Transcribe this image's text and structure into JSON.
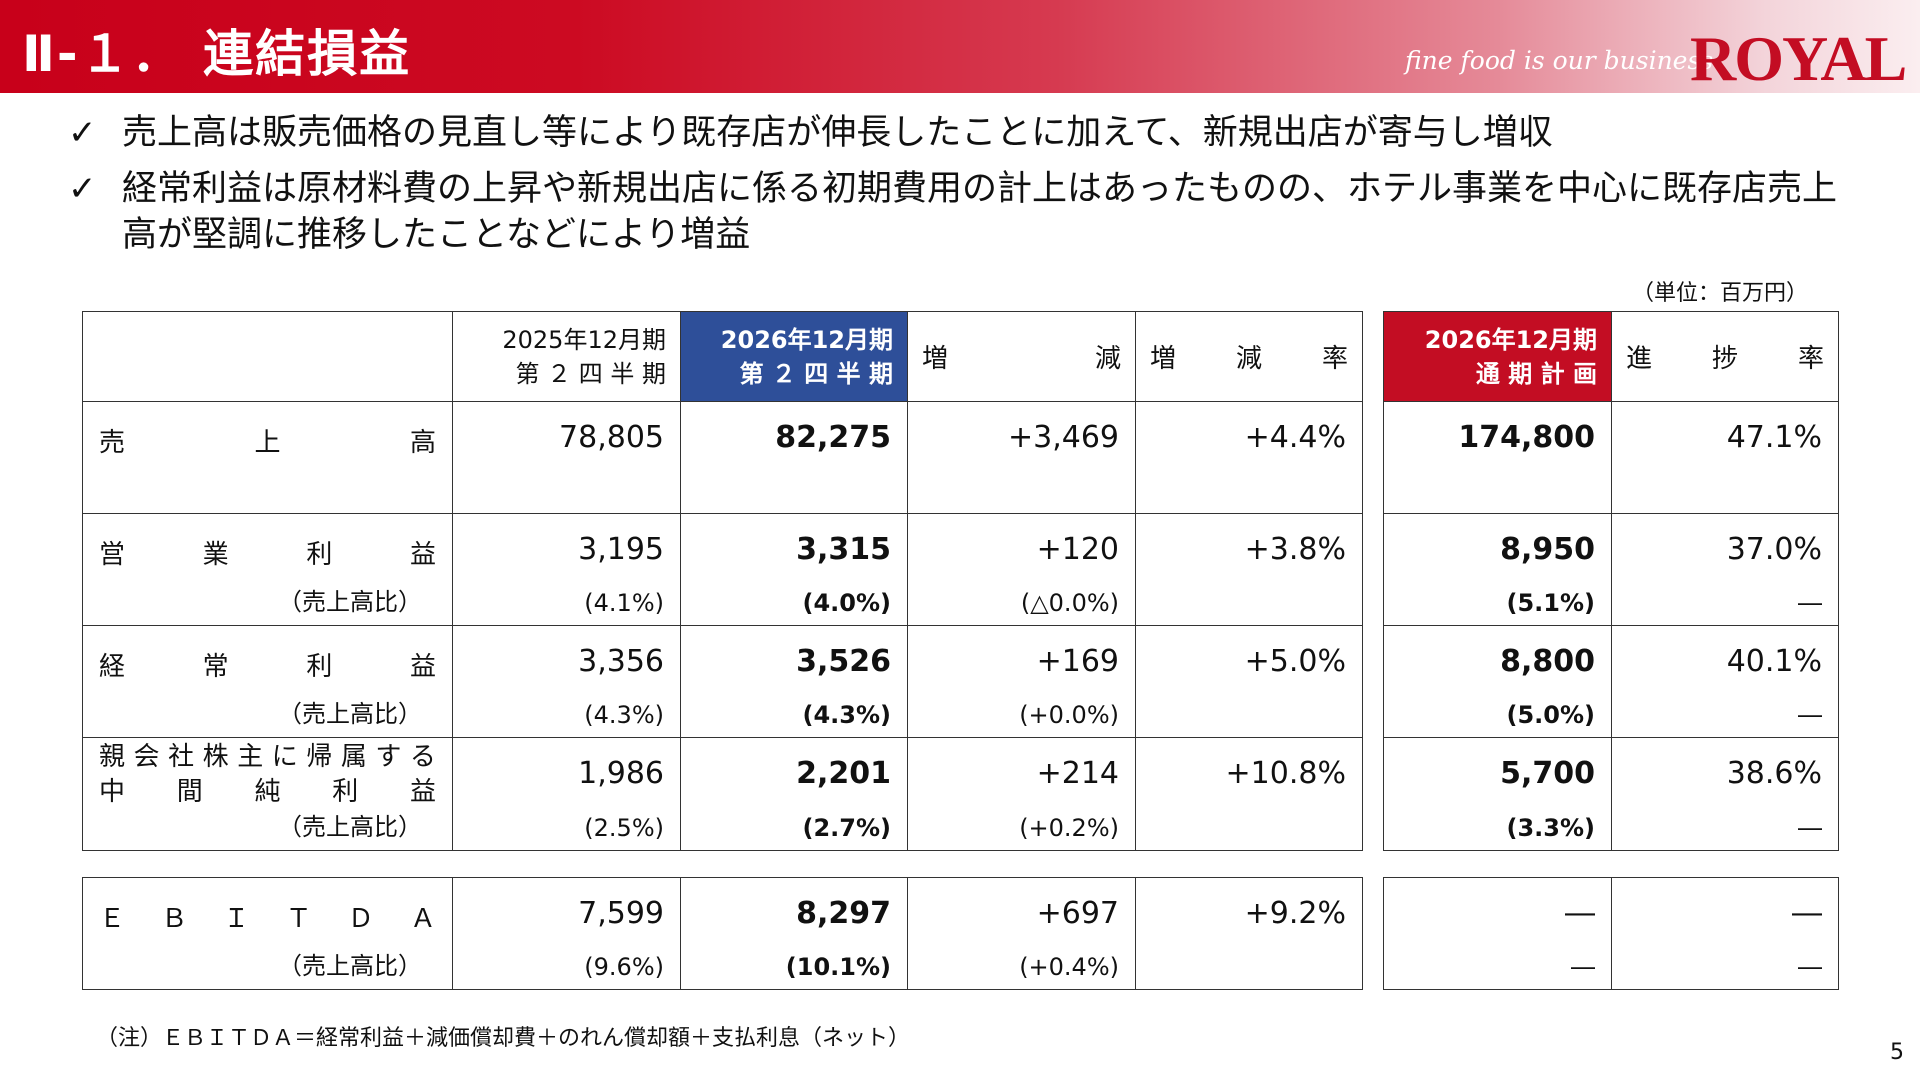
{
  "header": {
    "title": "Ⅱ-１． 連結損益",
    "tagline": "fine food is our business",
    "logo": "ROYAL"
  },
  "bullets": [
    "売上高は販売価格の見直し等により既存店が伸長したことに加えて、新規出店が寄与し増収",
    "経常利益は原材料費の上昇や新規出店に係る初期費用の計上はあったものの、ホテル事業を中心に既存店売上高が堅調に推移したことなどにより増益"
  ],
  "unit": "（単位：百万円）",
  "columns": {
    "prev": [
      "2025年12月期",
      "第 ２ 四 半 期"
    ],
    "curr": [
      "2026年12月期",
      "第 ２ 四 半 期"
    ],
    "change": [
      "増",
      "減"
    ],
    "rate": [
      "増",
      "減",
      "率"
    ],
    "plan": [
      "2026年12月期",
      "通 期 計 画"
    ],
    "progress": [
      "進",
      "捗",
      "率"
    ]
  },
  "rows": [
    {
      "label": [
        "売",
        "上",
        "高"
      ],
      "prev": "78,805",
      "curr": "82,275",
      "change": "+3,469",
      "rate": "+4.4%",
      "plan": "174,800",
      "progress": "47.1%"
    },
    {
      "label": [
        "営",
        "業",
        "利",
        "益"
      ],
      "sub_label": "（売上高比）",
      "prev": "3,195",
      "prev_sub": "(4.1%)",
      "curr": "3,315",
      "curr_sub": "(4.0%)",
      "change": "+120",
      "change_sub": "(△0.0%)",
      "rate": "+3.8%",
      "plan": "8,950",
      "plan_sub": "(5.1%)",
      "progress": "37.0%",
      "progress_sub": "―"
    },
    {
      "label": [
        "経",
        "常",
        "利",
        "益"
      ],
      "sub_label": "（売上高比）",
      "prev": "3,356",
      "prev_sub": "(4.3%)",
      "curr": "3,526",
      "curr_sub": "(4.3%)",
      "change": "+169",
      "change_sub": "(+0.0%)",
      "rate": "+5.0%",
      "plan": "8,800",
      "plan_sub": "(5.0%)",
      "progress": "40.1%",
      "progress_sub": "―"
    },
    {
      "label_line1": [
        "親",
        "会",
        "社",
        "株",
        "主",
        "に",
        "帰",
        "属",
        "す",
        "る"
      ],
      "label_line2": [
        "中",
        "間",
        "純",
        "利",
        "益"
      ],
      "sub_label": "（売上高比）",
      "prev": "1,986",
      "prev_sub": "(2.5%)",
      "curr": "2,201",
      "curr_sub": "(2.7%)",
      "change": "+214",
      "change_sub": "(+0.2%)",
      "rate": "+10.8%",
      "plan": "5,700",
      "plan_sub": "(3.3%)",
      "progress": "38.6%",
      "progress_sub": "―"
    }
  ],
  "ebitda": {
    "label": [
      "Ｅ",
      "Ｂ",
      "Ｉ",
      "Ｔ",
      "Ｄ",
      "Ａ"
    ],
    "sub_label": "（売上高比）",
    "prev": "7,599",
    "prev_sub": "(9.6%)",
    "curr": "8,297",
    "curr_sub": "(10.1%)",
    "change": "+697",
    "change_sub": "(+0.4%)",
    "rate": "+9.2%",
    "plan": "―",
    "plan_sub": "―",
    "progress": "―",
    "progress_sub": "―"
  },
  "note": "（注）ＥＢＩＴＤＡ＝経常利益＋減価償却費＋のれん償却額＋支払利息（ネット）",
  "page_number": "5",
  "colors": {
    "header_red": "#c8001a",
    "column_blue": "#2e4f99",
    "plan_red": "#c30d23"
  }
}
